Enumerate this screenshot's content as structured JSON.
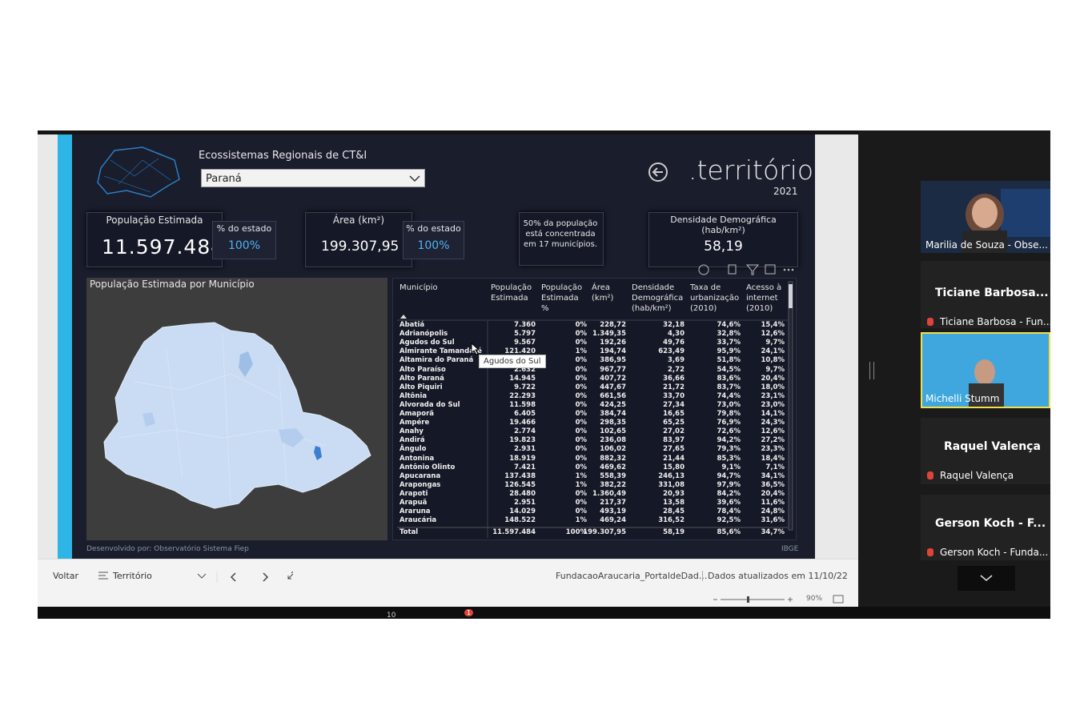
{
  "report": {
    "filter_label": "Ecossistemas Regionais de CT&I",
    "filter_value": "Paraná",
    "page_title": ".território",
    "year": "2021",
    "kpis": [
      {
        "label": "População Estimada",
        "value": "11.597.484",
        "share_label": "% do estado",
        "share": "100%"
      },
      {
        "label": "Área (km²)",
        "value": "199.307,95",
        "share_label": "% do estado",
        "share": "100%"
      }
    ],
    "note": "50% da população está concentrada em 17 municípios.",
    "density": {
      "label": "Densidade Demográfica (hab/km²)",
      "value": "58,19"
    },
    "map_title": "População Estimada por Município",
    "tooltip": "Agudos do Sul",
    "table": {
      "columns": [
        "Município",
        "População\nEstimada",
        "População\nEstimada\n%",
        "Área\n(km²)",
        "Densidade\nDemográfica\n(hab/km²)",
        "Taxa de\nurbanização\n(2010)",
        "Acesso à\ninternet\n(2010)"
      ],
      "rows": [
        [
          "Abatiá",
          "7.360",
          "0%",
          "228,72",
          "32,18",
          "74,6%",
          "15,4%"
        ],
        [
          "Adrianópolis",
          "5.797",
          "0%",
          "1.349,35",
          "4,30",
          "32,8%",
          "12,6%"
        ],
        [
          "Agudos do Sul",
          "9.567",
          "0%",
          "192,26",
          "49,76",
          "33,7%",
          "9,7%"
        ],
        [
          "Almirante Tamandaré",
          "121.420",
          "1%",
          "194,74",
          "623,49",
          "95,9%",
          "24,1%"
        ],
        [
          "Altamira do Paraná",
          null,
          "0%",
          "386,95",
          "3,69",
          "51,8%",
          "10,8%"
        ],
        [
          "Alto Paraíso",
          "2.632",
          "0%",
          "967,77",
          "2,72",
          "54,5%",
          "9,7%"
        ],
        [
          "Alto Paraná",
          "14.945",
          "0%",
          "407,72",
          "36,66",
          "83,6%",
          "20,4%"
        ],
        [
          "Alto Piquiri",
          "9.722",
          "0%",
          "447,67",
          "21,72",
          "83,7%",
          "18,0%"
        ],
        [
          "Altônia",
          "22.293",
          "0%",
          "661,56",
          "33,70",
          "74,4%",
          "23,1%"
        ],
        [
          "Alvorada do Sul",
          "11.598",
          "0%",
          "424,25",
          "27,34",
          "73,0%",
          "23,0%"
        ],
        [
          "Amaporã",
          "6.405",
          "0%",
          "384,74",
          "16,65",
          "79,8%",
          "14,1%"
        ],
        [
          "Ampére",
          "19.466",
          "0%",
          "298,35",
          "65,25",
          "76,9%",
          "24,3%"
        ],
        [
          "Anahy",
          "2.774",
          "0%",
          "102,65",
          "27,02",
          "72,6%",
          "12,6%"
        ],
        [
          "Andirá",
          "19.823",
          "0%",
          "236,08",
          "83,97",
          "94,2%",
          "27,2%"
        ],
        [
          "Ângulo",
          "2.931",
          "0%",
          "106,02",
          "27,65",
          "79,3%",
          "23,3%"
        ],
        [
          "Antonina",
          "18.919",
          "0%",
          "882,32",
          "21,44",
          "85,3%",
          "18,4%"
        ],
        [
          "Antônio Olinto",
          "7.421",
          "0%",
          "469,62",
          "15,80",
          "9,1%",
          "7,1%"
        ],
        [
          "Apucarana",
          "137.438",
          "1%",
          "558,39",
          "246,13",
          "94,7%",
          "34,1%"
        ],
        [
          "Arapongas",
          "126.545",
          "1%",
          "382,22",
          "331,08",
          "97,9%",
          "36,5%"
        ],
        [
          "Arapoti",
          "28.480",
          "0%",
          "1.360,49",
          "20,93",
          "84,2%",
          "20,4%"
        ],
        [
          "Arapuã",
          "2.951",
          "0%",
          "217,37",
          "13,58",
          "39,6%",
          "11,6%"
        ],
        [
          "Araruna",
          "14.029",
          "0%",
          "493,19",
          "28,45",
          "78,4%",
          "24,8%"
        ],
        [
          "Araucária",
          "148.522",
          "1%",
          "469,24",
          "316,52",
          "92,5%",
          "31,6%"
        ]
      ],
      "total": [
        "Total",
        "11.597.484",
        "100%",
        "199.307,95",
        "58,19",
        "85,6%",
        "34,7%"
      ]
    },
    "footer_left": "Desenvolvido por: Observatório Sistema Fiep",
    "footer_right": "IBGE"
  },
  "toolbar": {
    "back": "Voltar",
    "page": "Território",
    "file": "FundacaoAraucaria_PortaldeDad...",
    "updated": "Dados atualizados em 11/10/22",
    "zoom": "90%"
  },
  "participants": [
    {
      "name": "Marilia de Souza - Obse..."
    },
    {
      "title": "Ticiane  Barbosa...",
      "name": "Ticiane Barbosa - Fun..."
    },
    {
      "name": "Michelli Stumm"
    },
    {
      "title": "Raquel Valença",
      "name": "Raquel Valença"
    },
    {
      "title": "Gerson Koch - F...",
      "name": "Gerson Koch - Funda..."
    }
  ],
  "meeting_bar": {
    "participants_count": "10",
    "chat_badge": "1"
  }
}
